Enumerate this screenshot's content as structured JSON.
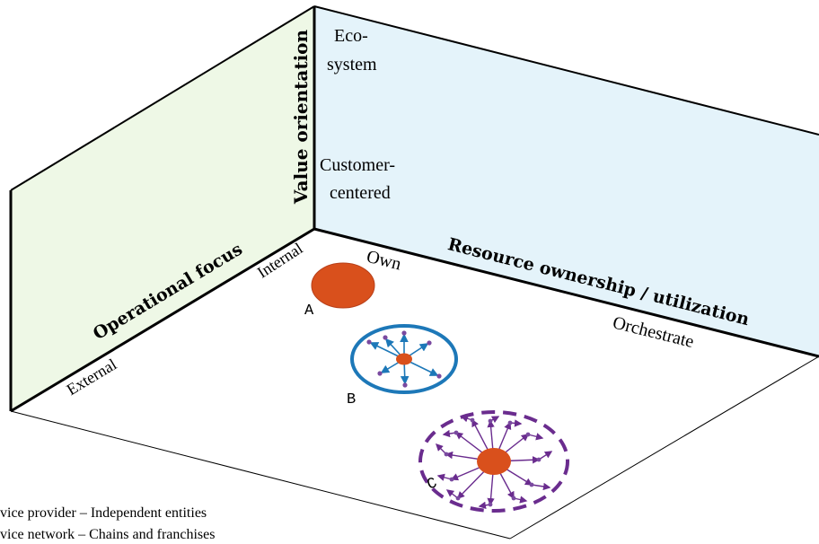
{
  "axes": {
    "value_orientation": "Value orientation",
    "operational_focus": "Operational focus",
    "resource_ownership": "Resource ownership / utilization"
  },
  "ticks": {
    "ecosystem": [
      "Eco-",
      "system"
    ],
    "customer_centered": [
      "Customer-",
      "centered"
    ],
    "internal": "Internal",
    "external": "External",
    "own": "Own",
    "orchestrate": "Orchestrate"
  },
  "points": {
    "a": "A",
    "b": "B",
    "c": "C"
  },
  "legend": [
    "vice provider – Independent entities",
    "vice network – Chains and franchises"
  ],
  "colors": {
    "left_wall": "#eef8e6",
    "back_wall": "#e4f3fa",
    "edge": "#000000",
    "orange": "#d9501c",
    "blue": "#1d78b8",
    "purple": "#6a2c8e"
  }
}
